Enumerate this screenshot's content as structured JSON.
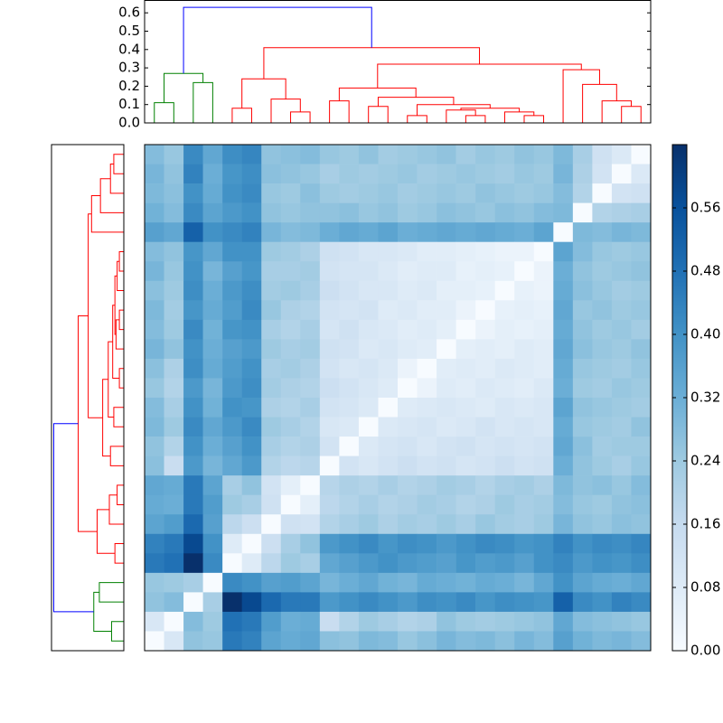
{
  "chart_data": {
    "type": "clustermap",
    "colormap": [
      "#f7fbff",
      "#deebf7",
      "#c6dbef",
      "#9ecae1",
      "#6baed6",
      "#4292c6",
      "#2171b5",
      "#08519c",
      "#08306b"
    ],
    "clim": [
      0,
      0.64
    ],
    "colorbar_ticks": [
      {
        "value": 0,
        "label": "0.00"
      },
      0.08,
      0.16,
      0.24,
      0.32,
      {
        "value": 0.4,
        "label": "0.40"
      },
      0.48,
      0.56
    ],
    "top_ylim": [
      0,
      0.665
    ],
    "top_yticks": [
      {
        "value": 0,
        "label": "0.0"
      },
      0.1,
      0.2,
      0.3,
      0.4,
      0.5,
      0.6
    ],
    "left_xlim": [
      0,
      0.65
    ],
    "links": [
      {
        "children": [
          0,
          1
        ],
        "height": 0.11,
        "color": "#008000"
      },
      {
        "children": [
          2,
          3
        ],
        "height": 0.22,
        "color": "#008000"
      },
      {
        "children": [
          26,
          27
        ],
        "height": 0.27,
        "color": "#008000"
      },
      {
        "children": [
          4,
          5
        ],
        "height": 0.08,
        "color": "#ff0000"
      },
      {
        "children": [
          7,
          8
        ],
        "height": 0.06,
        "color": "#ff0000"
      },
      {
        "children": [
          6,
          30
        ],
        "height": 0.13,
        "color": "#ff0000"
      },
      {
        "children": [
          29,
          31
        ],
        "height": 0.24,
        "color": "#ff0000"
      },
      {
        "children": [
          9,
          10
        ],
        "height": 0.12,
        "color": "#ff0000"
      },
      {
        "children": [
          11,
          12
        ],
        "height": 0.09,
        "color": "#ff0000"
      },
      {
        "children": [
          13,
          14
        ],
        "height": 0.04,
        "color": "#ff0000"
      },
      {
        "children": [
          16,
          17
        ],
        "height": 0.04,
        "color": "#ff0000"
      },
      {
        "children": [
          15,
          36
        ],
        "height": 0.07,
        "color": "#ff0000"
      },
      {
        "children": [
          19,
          20
        ],
        "height": 0.04,
        "color": "#ff0000"
      },
      {
        "children": [
          18,
          38
        ],
        "height": 0.06,
        "color": "#ff0000"
      },
      {
        "children": [
          37,
          39
        ],
        "height": 0.08,
        "color": "#ff0000"
      },
      {
        "children": [
          35,
          40
        ],
        "height": 0.1,
        "color": "#ff0000"
      },
      {
        "children": [
          34,
          41
        ],
        "height": 0.14,
        "color": "#ff0000"
      },
      {
        "children": [
          33,
          42
        ],
        "height": 0.19,
        "color": "#ff0000"
      },
      {
        "children": [
          24,
          25
        ],
        "height": 0.09,
        "color": "#ff0000"
      },
      {
        "children": [
          23,
          44
        ],
        "height": 0.12,
        "color": "#ff0000"
      },
      {
        "children": [
          22,
          45
        ],
        "height": 0.21,
        "color": "#ff0000"
      },
      {
        "children": [
          21,
          46
        ],
        "height": 0.29,
        "color": "#ff0000"
      },
      {
        "children": [
          43,
          47
        ],
        "height": 0.32,
        "color": "#ff0000"
      },
      {
        "children": [
          32,
          48
        ],
        "height": 0.41,
        "color": "#ff0000"
      },
      {
        "children": [
          28,
          49
        ],
        "height": 0.63,
        "color": "#0000ff"
      }
    ],
    "matrix": [
      [
        0.28,
        0.25,
        0.42,
        0.34,
        0.41,
        0.43,
        0.26,
        0.27,
        0.28,
        0.25,
        0.24,
        0.26,
        0.23,
        0.24,
        0.25,
        0.26,
        0.23,
        0.25,
        0.24,
        0.26,
        0.25,
        0.29,
        0.22,
        0.13,
        0.09,
        0
      ],
      [
        0.3,
        0.26,
        0.44,
        0.32,
        0.39,
        0.41,
        0.27,
        0.26,
        0.25,
        0.22,
        0.24,
        0.23,
        0.24,
        0.25,
        0.23,
        0.24,
        0.25,
        0.24,
        0.23,
        0.25,
        0.24,
        0.3,
        0.21,
        0.12,
        0,
        0.09
      ],
      [
        0.29,
        0.27,
        0.4,
        0.33,
        0.4,
        0.42,
        0.25,
        0.24,
        0.27,
        0.24,
        0.23,
        0.24,
        0.25,
        0.23,
        0.24,
        0.25,
        0.24,
        0.26,
        0.25,
        0.24,
        0.25,
        0.28,
        0.2,
        0,
        0.12,
        0.13
      ],
      [
        0.31,
        0.28,
        0.42,
        0.35,
        0.38,
        0.4,
        0.26,
        0.25,
        0.26,
        0.26,
        0.27,
        0.25,
        0.26,
        0.24,
        0.25,
        0.27,
        0.26,
        0.25,
        0.27,
        0.26,
        0.28,
        0.29,
        0,
        0.2,
        0.21,
        0.22
      ],
      [
        0.36,
        0.34,
        0.52,
        0.4,
        0.42,
        0.44,
        0.3,
        0.28,
        0.29,
        0.32,
        0.34,
        0.33,
        0.35,
        0.32,
        0.33,
        0.34,
        0.33,
        0.34,
        0.33,
        0.32,
        0.35,
        0,
        0.29,
        0.28,
        0.3,
        0.29
      ],
      [
        0.28,
        0.26,
        0.39,
        0.34,
        0.4,
        0.4,
        0.24,
        0.23,
        0.21,
        0.13,
        0.12,
        0.1,
        0.1,
        0.09,
        0.07,
        0.07,
        0.06,
        0.05,
        0.04,
        0.04,
        0,
        0.35,
        0.28,
        0.25,
        0.24,
        0.25
      ],
      [
        0.3,
        0.25,
        0.4,
        0.3,
        0.36,
        0.39,
        0.22,
        0.22,
        0.23,
        0.12,
        0.11,
        0.11,
        0.09,
        0.07,
        0.08,
        0.08,
        0.05,
        0.06,
        0.05,
        0,
        0.04,
        0.32,
        0.26,
        0.24,
        0.25,
        0.26
      ],
      [
        0.27,
        0.24,
        0.41,
        0.32,
        0.38,
        0.41,
        0.23,
        0.24,
        0.22,
        0.14,
        0.12,
        0.1,
        0.1,
        0.08,
        0.09,
        0.06,
        0.06,
        0.05,
        0,
        0.05,
        0.04,
        0.33,
        0.27,
        0.25,
        0.23,
        0.24
      ],
      [
        0.29,
        0.23,
        0.39,
        0.33,
        0.37,
        0.42,
        0.25,
        0.21,
        0.2,
        0.12,
        0.11,
        0.12,
        0.08,
        0.09,
        0.07,
        0.07,
        0.04,
        0,
        0.05,
        0.06,
        0.05,
        0.34,
        0.25,
        0.26,
        0.24,
        0.25
      ],
      [
        0.28,
        0.24,
        0.42,
        0.31,
        0.39,
        0.4,
        0.22,
        0.2,
        0.22,
        0.11,
        0.13,
        0.1,
        0.09,
        0.07,
        0.08,
        0.06,
        0,
        0.04,
        0.06,
        0.05,
        0.06,
        0.33,
        0.26,
        0.24,
        0.25,
        0.23
      ],
      [
        0.3,
        0.26,
        0.4,
        0.32,
        0.36,
        0.38,
        0.24,
        0.22,
        0.23,
        0.13,
        0.12,
        0.09,
        0.1,
        0.08,
        0.07,
        0,
        0.06,
        0.07,
        0.06,
        0.08,
        0.07,
        0.34,
        0.27,
        0.25,
        0.24,
        0.26
      ],
      [
        0.27,
        0.21,
        0.41,
        0.33,
        0.37,
        0.4,
        0.22,
        0.23,
        0.21,
        0.12,
        0.1,
        0.11,
        0.09,
        0.04,
        0,
        0.07,
        0.08,
        0.07,
        0.09,
        0.08,
        0.07,
        0.33,
        0.25,
        0.24,
        0.23,
        0.25
      ],
      [
        0.25,
        0.2,
        0.38,
        0.3,
        0.38,
        0.41,
        0.23,
        0.21,
        0.2,
        0.14,
        0.12,
        0.1,
        0.08,
        0,
        0.04,
        0.08,
        0.07,
        0.09,
        0.08,
        0.07,
        0.09,
        0.32,
        0.24,
        0.23,
        0.25,
        0.24
      ],
      [
        0.28,
        0.22,
        0.4,
        0.31,
        0.4,
        0.39,
        0.21,
        0.2,
        0.22,
        0.12,
        0.11,
        0.09,
        0,
        0.08,
        0.09,
        0.1,
        0.09,
        0.08,
        0.1,
        0.09,
        0.1,
        0.35,
        0.26,
        0.25,
        0.24,
        0.23
      ],
      [
        0.29,
        0.24,
        0.42,
        0.34,
        0.38,
        0.42,
        0.24,
        0.22,
        0.2,
        0.1,
        0.09,
        0,
        0.09,
        0.1,
        0.11,
        0.09,
        0.1,
        0.12,
        0.1,
        0.11,
        0.1,
        0.33,
        0.25,
        0.24,
        0.23,
        0.26
      ],
      [
        0.26,
        0.2,
        0.4,
        0.32,
        0.36,
        0.4,
        0.22,
        0.2,
        0.21,
        0.12,
        0,
        0.09,
        0.11,
        0.12,
        0.1,
        0.12,
        0.13,
        0.11,
        0.12,
        0.11,
        0.12,
        0.34,
        0.27,
        0.23,
        0.24,
        0.24
      ],
      [
        0.27,
        0.15,
        0.38,
        0.3,
        0.34,
        0.38,
        0.2,
        0.18,
        0.19,
        0,
        0.12,
        0.1,
        0.12,
        0.14,
        0.12,
        0.13,
        0.11,
        0.12,
        0.14,
        0.12,
        0.13,
        0.32,
        0.26,
        0.24,
        0.22,
        0.25
      ],
      [
        0.34,
        0.33,
        0.46,
        0.35,
        0.22,
        0.26,
        0.12,
        0.06,
        0,
        0.19,
        0.21,
        0.2,
        0.22,
        0.2,
        0.21,
        0.23,
        0.22,
        0.2,
        0.22,
        0.23,
        0.21,
        0.29,
        0.26,
        0.27,
        0.25,
        0.28
      ],
      [
        0.33,
        0.32,
        0.46,
        0.37,
        0.24,
        0.22,
        0.13,
        0,
        0.06,
        0.18,
        0.2,
        0.22,
        0.2,
        0.21,
        0.23,
        0.22,
        0.2,
        0.21,
        0.24,
        0.22,
        0.23,
        0.28,
        0.25,
        0.24,
        0.26,
        0.27
      ],
      [
        0.35,
        0.37,
        0.5,
        0.36,
        0.18,
        0.14,
        0,
        0.13,
        0.12,
        0.2,
        0.22,
        0.24,
        0.21,
        0.23,
        0.22,
        0.24,
        0.22,
        0.25,
        0.23,
        0.22,
        0.24,
        0.3,
        0.26,
        0.25,
        0.27,
        0.26
      ],
      [
        0.44,
        0.46,
        0.58,
        0.4,
        0.08,
        0,
        0.14,
        0.22,
        0.26,
        0.38,
        0.4,
        0.42,
        0.39,
        0.41,
        0.4,
        0.38,
        0.4,
        0.42,
        0.41,
        0.39,
        0.4,
        0.44,
        0.4,
        0.42,
        0.41,
        0.43
      ],
      [
        0.46,
        0.48,
        0.64,
        0.42,
        0,
        0.08,
        0.18,
        0.24,
        0.22,
        0.34,
        0.36,
        0.38,
        0.4,
        0.38,
        0.37,
        0.36,
        0.39,
        0.37,
        0.38,
        0.36,
        0.4,
        0.42,
        0.38,
        0.4,
        0.39,
        0.41
      ],
      [
        0.25,
        0.24,
        0.22,
        0,
        0.42,
        0.4,
        0.36,
        0.37,
        0.35,
        0.3,
        0.32,
        0.34,
        0.31,
        0.3,
        0.33,
        0.32,
        0.31,
        0.33,
        0.32,
        0.3,
        0.34,
        0.4,
        0.35,
        0.33,
        0.32,
        0.34
      ],
      [
        0.26,
        0.28,
        0,
        0.22,
        0.64,
        0.58,
        0.5,
        0.46,
        0.46,
        0.38,
        0.4,
        0.42,
        0.4,
        0.38,
        0.41,
        0.4,
        0.42,
        0.39,
        0.41,
        0.4,
        0.39,
        0.52,
        0.42,
        0.4,
        0.44,
        0.42
      ],
      [
        0.1,
        0,
        0.28,
        0.24,
        0.48,
        0.46,
        0.37,
        0.32,
        0.33,
        0.15,
        0.2,
        0.24,
        0.22,
        0.2,
        0.21,
        0.26,
        0.24,
        0.23,
        0.24,
        0.25,
        0.26,
        0.34,
        0.28,
        0.27,
        0.26,
        0.25
      ],
      [
        0,
        0.1,
        0.26,
        0.25,
        0.46,
        0.44,
        0.35,
        0.33,
        0.34,
        0.27,
        0.26,
        0.29,
        0.28,
        0.25,
        0.27,
        0.3,
        0.28,
        0.29,
        0.27,
        0.3,
        0.28,
        0.36,
        0.31,
        0.29,
        0.3,
        0.28
      ]
    ]
  }
}
